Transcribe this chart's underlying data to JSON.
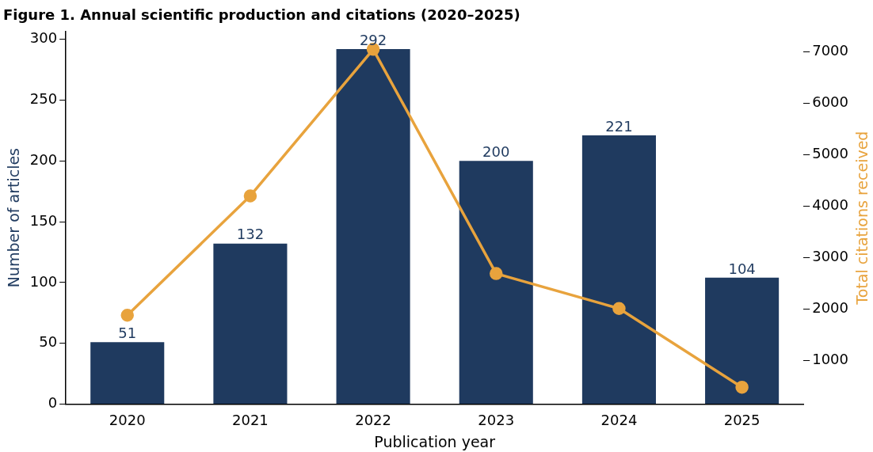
{
  "chart_data": {
    "type": "bar",
    "title": "Figure 1. Annual scientific production and citations (2020–2025)",
    "xlabel": "Publication year",
    "ylabel": "Number of articles",
    "y2label": "Total citations received",
    "categories": [
      "2020",
      "2021",
      "2022",
      "2023",
      "2024",
      "2025"
    ],
    "series": [
      {
        "color": "#1f3a5f",
        "values": [
          51,
          132,
          292,
          200,
          221,
          104
        ],
        "value_labels": [
          "51",
          "132",
          "292",
          "200",
          "221",
          "104"
        ]
      },
      {
        "type": "line",
        "axis": "y2",
        "color": "#e8a33d",
        "values": [
          1880,
          4200,
          7050,
          2690,
          2010,
          480
        ],
        "marker": "circle"
      }
    ],
    "ylim": [
      0,
      306.6
    ],
    "yticks": [
      0,
      50,
      100,
      150,
      200,
      250,
      300
    ],
    "y2lim": [
      150,
      7400
    ],
    "y2ticks": [
      1000,
      2000,
      3000,
      4000,
      5000,
      6000,
      7000
    ],
    "grid": false,
    "legend": false
  }
}
